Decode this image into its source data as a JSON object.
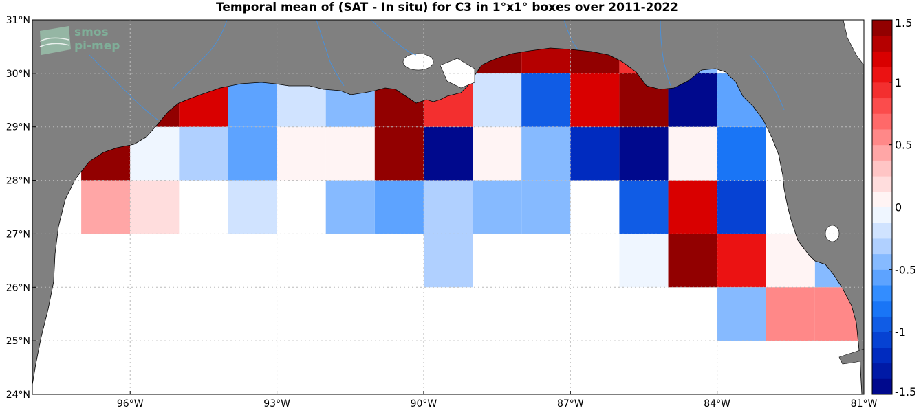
{
  "title": "Temporal mean of (SAT - In situ) for C3 in 1°x1° boxes over 2011-2022",
  "logo": {
    "line1": "smos",
    "line2": "pi-mep"
  },
  "map": {
    "lon_range": [
      -98,
      -81
    ],
    "lat_range": [
      24,
      31
    ],
    "lon_ticks": [
      {
        "value": -96,
        "label": "96°W"
      },
      {
        "value": -93,
        "label": "93°W"
      },
      {
        "value": -90,
        "label": "90°W"
      },
      {
        "value": -87,
        "label": "87°W"
      },
      {
        "value": -84,
        "label": "84°W"
      },
      {
        "value": -81,
        "label": "81°W"
      }
    ],
    "lat_ticks": [
      {
        "value": 24,
        "label": "24°N"
      },
      {
        "value": 25,
        "label": "25°N"
      },
      {
        "value": 26,
        "label": "26°N"
      },
      {
        "value": 27,
        "label": "27°N"
      },
      {
        "value": 28,
        "label": "28°N"
      },
      {
        "value": 29,
        "label": "29°N"
      },
      {
        "value": 30,
        "label": "30°N"
      },
      {
        "value": 31,
        "label": "31°N"
      }
    ],
    "land_color": "#808080",
    "ocean_color": "#ffffff",
    "grid": true
  },
  "chart_data": {
    "type": "heatmap",
    "title": "Temporal mean of (SAT - In situ) for C3 in 1°x1° boxes over 2011-2022",
    "unit_boxes": "1°x1°",
    "colorbar": {
      "min": -1.5,
      "max": 1.5,
      "ticks": [
        1.5,
        1,
        0.5,
        0,
        -0.5,
        -1,
        -1.5
      ],
      "tick_labels": [
        "1.5",
        "1",
        "0.5",
        "0",
        "-0.5",
        "-1",
        "-1.5"
      ]
    },
    "cells": [
      {
        "lon": -96.5,
        "lat": 28.5,
        "value": 1.45
      },
      {
        "lon": -95.5,
        "lat": 28.5,
        "value": -0.1
      },
      {
        "lon": -94.5,
        "lat": 28.5,
        "value": -0.3
      },
      {
        "lon": -93.5,
        "lat": 28.5,
        "value": -0.6
      },
      {
        "lon": -92.5,
        "lat": 28.5,
        "value": 0.1
      },
      {
        "lon": -91.5,
        "lat": 28.5,
        "value": 0.1
      },
      {
        "lon": -90.5,
        "lat": 28.5,
        "value": 1.45
      },
      {
        "lon": -89.5,
        "lat": 28.5,
        "value": -1.5
      },
      {
        "lon": -88.5,
        "lat": 28.5,
        "value": 0.0
      },
      {
        "lon": -87.5,
        "lat": 28.5,
        "value": -0.5
      },
      {
        "lon": -86.5,
        "lat": 28.5,
        "value": -1.2
      },
      {
        "lon": -85.5,
        "lat": 28.5,
        "value": -1.5
      },
      {
        "lon": -84.5,
        "lat": 28.5,
        "value": 0.0
      },
      {
        "lon": -83.5,
        "lat": 28.5,
        "value": -0.8
      },
      {
        "lon": -95.5,
        "lat": 29.5,
        "value": 1.45
      },
      {
        "lon": -94.5,
        "lat": 29.5,
        "value": 1.2
      },
      {
        "lon": -93.5,
        "lat": 29.5,
        "value": -0.6
      },
      {
        "lon": -92.5,
        "lat": 29.5,
        "value": -0.2
      },
      {
        "lon": -91.5,
        "lat": 29.5,
        "value": -0.4
      },
      {
        "lon": -90.5,
        "lat": 29.5,
        "value": 1.45
      },
      {
        "lon": -89.5,
        "lat": 29.5,
        "value": 0.9
      },
      {
        "lon": -88.5,
        "lat": 29.5,
        "value": -0.2
      },
      {
        "lon": -87.5,
        "lat": 29.5,
        "value": -0.9
      },
      {
        "lon": -86.5,
        "lat": 29.5,
        "value": 1.2
      },
      {
        "lon": -85.5,
        "lat": 29.5,
        "value": 1.45
      },
      {
        "lon": -84.5,
        "lat": 29.5,
        "value": -1.5
      },
      {
        "lon": -83.5,
        "lat": 29.5,
        "value": -0.6
      },
      {
        "lon": -88.5,
        "lat": 30.5,
        "value": 1.45
      },
      {
        "lon": -87.5,
        "lat": 30.5,
        "value": 1.35
      },
      {
        "lon": -86.5,
        "lat": 30.5,
        "value": 1.45
      },
      {
        "lon": -85.5,
        "lat": 30.5,
        "value": 0.9
      },
      {
        "lon": -84.5,
        "lat": 30.5,
        "value": -0.4
      },
      {
        "lon": -96.5,
        "lat": 27.5,
        "value": 0.4
      },
      {
        "lon": -95.5,
        "lat": 27.5,
        "value": 0.2
      },
      {
        "lon": -93.5,
        "lat": 27.5,
        "value": -0.2
      },
      {
        "lon": -91.5,
        "lat": 27.5,
        "value": -0.4
      },
      {
        "lon": -90.5,
        "lat": 27.5,
        "value": -0.6
      },
      {
        "lon": -89.5,
        "lat": 27.5,
        "value": -0.3
      },
      {
        "lon": -88.5,
        "lat": 27.5,
        "value": -0.5
      },
      {
        "lon": -87.5,
        "lat": 27.5,
        "value": -0.5
      },
      {
        "lon": -85.5,
        "lat": 27.5,
        "value": -1.0
      },
      {
        "lon": -84.5,
        "lat": 27.5,
        "value": 1.2
      },
      {
        "lon": -83.5,
        "lat": 27.5,
        "value": -1.1
      },
      {
        "lon": -89.5,
        "lat": 26.5,
        "value": -0.3
      },
      {
        "lon": -85.5,
        "lat": 26.5,
        "value": -0.1
      },
      {
        "lon": -84.5,
        "lat": 26.5,
        "value": 1.45
      },
      {
        "lon": -83.5,
        "lat": 26.5,
        "value": 1.0
      },
      {
        "lon": -82.5,
        "lat": 26.5,
        "value": 0.0
      },
      {
        "lon": -81.5,
        "lat": 26.5,
        "value": -0.5
      },
      {
        "lon": -83.5,
        "lat": 25.5,
        "value": -0.4
      },
      {
        "lon": -82.5,
        "lat": 25.5,
        "value": 0.5
      },
      {
        "lon": -81.5,
        "lat": 25.5,
        "value": 0.6
      }
    ]
  }
}
